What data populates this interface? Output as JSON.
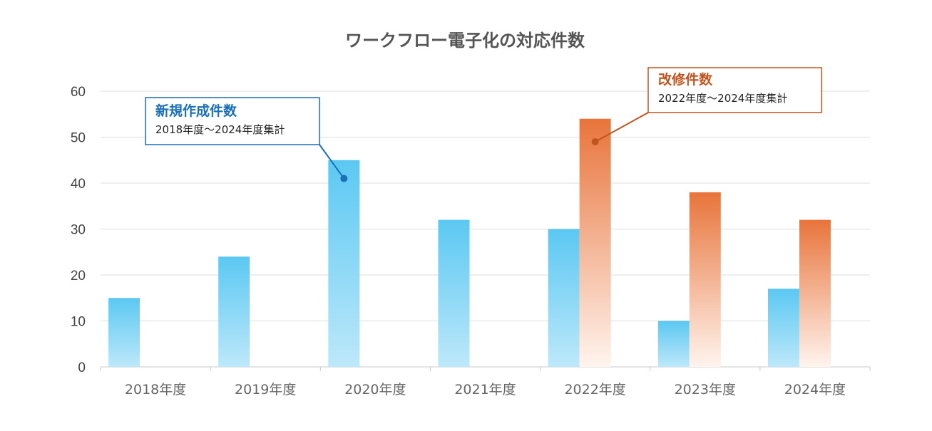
{
  "chart_data": {
    "type": "bar",
    "title": "ワークフロー電子化の対応件数",
    "categories": [
      "2018年度",
      "2019年度",
      "2020年度",
      "2021年度",
      "2022年度",
      "2023年度",
      "2024年度"
    ],
    "series": [
      {
        "key": "new",
        "color": "#5bc8f2",
        "values": [
          15,
          24,
          45,
          32,
          30,
          10,
          17
        ]
      },
      {
        "key": "mod",
        "color": "#e8743b",
        "values": [
          null,
          null,
          null,
          null,
          54,
          38,
          32
        ]
      }
    ],
    "ylim": [
      0,
      60
    ],
    "yticks": [
      0,
      10,
      20,
      30,
      40,
      50,
      60
    ],
    "grid": true,
    "annotations": [
      {
        "key": "new",
        "title": "新規作成件数",
        "subtitle": "2018年度～2024年度集計",
        "color": "#1a6fb5",
        "category_index": 2,
        "value": 41
      },
      {
        "key": "mod",
        "title": "改修件数",
        "subtitle": "2022年度～2024年度集計",
        "color": "#c0541e",
        "category_index": 4,
        "value": 49
      }
    ]
  }
}
